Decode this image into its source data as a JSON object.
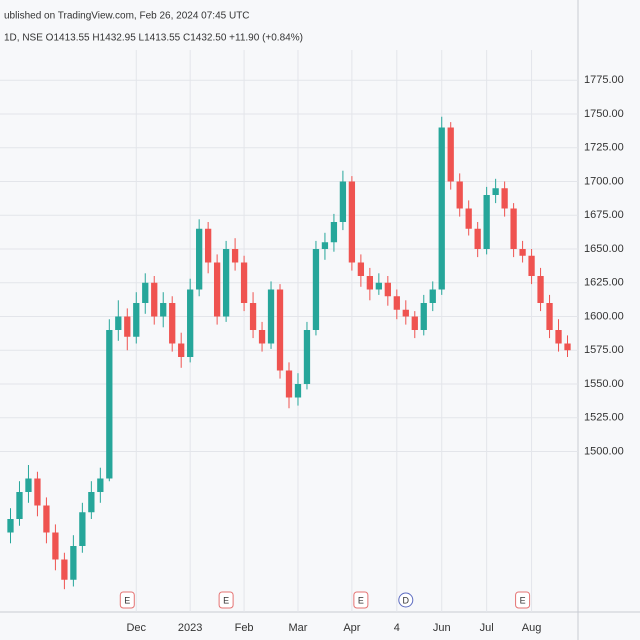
{
  "chart_data": {
    "type": "candlestick",
    "title": "ublished on TradingView.com, Feb 26, 2024 07:45 UTC",
    "subtitle": "1D, NSE O1413.55 H1432.95 L1413.55 C1432.50 +11.90 (+0.84%)",
    "up_color": "#26a69a",
    "down_color": "#ef5350",
    "grid": true,
    "ylim": [
      1390,
      1790
    ],
    "yticks": [
      {
        "value": 1775,
        "label": "1775.00"
      },
      {
        "value": 1750,
        "label": "1750.00"
      },
      {
        "value": 1725,
        "label": "1725.00"
      },
      {
        "value": 1700,
        "label": "1700.00"
      },
      {
        "value": 1675,
        "label": "1675.00"
      },
      {
        "value": 1650,
        "label": "1650.00"
      },
      {
        "value": 1625,
        "label": "1625.00"
      },
      {
        "value": 1600,
        "label": "1600.00"
      },
      {
        "value": 1575,
        "label": "1575.00"
      },
      {
        "value": 1550,
        "label": "1550.00"
      },
      {
        "value": 1525,
        "label": "1525.00"
      },
      {
        "value": 1500,
        "label": "1500.00"
      }
    ],
    "xticks": [
      {
        "value": 14,
        "label": "Dec"
      },
      {
        "value": 20,
        "label": "2023"
      },
      {
        "value": 26,
        "label": "Feb"
      },
      {
        "value": 32,
        "label": "Mar"
      },
      {
        "value": 38,
        "label": "Apr"
      },
      {
        "value": 43,
        "label": "4"
      },
      {
        "value": 48,
        "label": "Jun"
      },
      {
        "value": 53,
        "label": "Jul"
      },
      {
        "value": 58,
        "label": "Aug"
      }
    ],
    "events": [
      {
        "index": 13,
        "label": "E"
      },
      {
        "index": 24,
        "label": "E"
      },
      {
        "index": 39,
        "label": "E"
      },
      {
        "index": 44,
        "label": "D"
      },
      {
        "index": 57,
        "label": "E"
      }
    ],
    "open": [
      1440,
      1450,
      1470,
      1480,
      1460,
      1440,
      1420,
      1405,
      1430,
      1455,
      1470,
      1480,
      1590,
      1600,
      1585,
      1610,
      1625,
      1600,
      1610,
      1580,
      1570,
      1620,
      1665,
      1640,
      1600,
      1650,
      1640,
      1610,
      1590,
      1580,
      1620,
      1560,
      1540,
      1550,
      1590,
      1650,
      1655,
      1670,
      1700,
      1640,
      1630,
      1620,
      1625,
      1615,
      1605,
      1600,
      1590,
      1610,
      1620,
      1740,
      1700,
      1680,
      1665,
      1650,
      1690,
      1695,
      1680,
      1650,
      1645,
      1630,
      1610,
      1590,
      1580
    ],
    "high": [
      1458,
      1478,
      1490,
      1485,
      1466,
      1446,
      1425,
      1438,
      1462,
      1478,
      1488,
      1598,
      1612,
      1606,
      1618,
      1632,
      1630,
      1618,
      1615,
      1588,
      1628,
      1672,
      1670,
      1646,
      1656,
      1658,
      1645,
      1618,
      1596,
      1626,
      1624,
      1566,
      1558,
      1596,
      1656,
      1662,
      1676,
      1708,
      1704,
      1646,
      1636,
      1632,
      1630,
      1620,
      1612,
      1604,
      1616,
      1626,
      1748,
      1744,
      1706,
      1686,
      1670,
      1696,
      1702,
      1700,
      1684,
      1656,
      1650,
      1636,
      1616,
      1598,
      1586
    ],
    "low": [
      1432,
      1445,
      1462,
      1452,
      1432,
      1412,
      1398,
      1400,
      1425,
      1450,
      1462,
      1478,
      1582,
      1575,
      1580,
      1602,
      1594,
      1592,
      1574,
      1562,
      1566,
      1615,
      1632,
      1594,
      1596,
      1634,
      1604,
      1584,
      1574,
      1576,
      1554,
      1532,
      1534,
      1546,
      1586,
      1642,
      1648,
      1664,
      1634,
      1622,
      1612,
      1616,
      1608,
      1598,
      1594,
      1584,
      1586,
      1604,
      1616,
      1694,
      1674,
      1660,
      1644,
      1646,
      1684,
      1674,
      1644,
      1640,
      1624,
      1604,
      1584,
      1574,
      1570
    ],
    "close": [
      1450,
      1470,
      1480,
      1460,
      1440,
      1420,
      1405,
      1430,
      1455,
      1470,
      1480,
      1590,
      1600,
      1585,
      1610,
      1625,
      1600,
      1610,
      1580,
      1570,
      1620,
      1665,
      1640,
      1600,
      1650,
      1640,
      1610,
      1590,
      1580,
      1620,
      1560,
      1540,
      1550,
      1590,
      1650,
      1655,
      1670,
      1700,
      1640,
      1630,
      1620,
      1625,
      1615,
      1605,
      1600,
      1590,
      1610,
      1620,
      1740,
      1700,
      1680,
      1665,
      1650,
      1690,
      1695,
      1680,
      1650,
      1645,
      1630,
      1610,
      1590,
      1580,
      1575
    ]
  }
}
